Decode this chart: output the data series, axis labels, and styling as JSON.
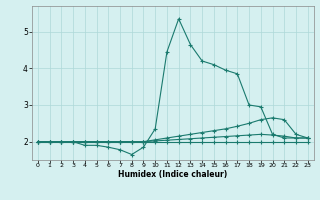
{
  "xlabel": "Humidex (Indice chaleur)",
  "bg_color": "#d5f0f0",
  "grid_color": "#aed8d8",
  "line_color": "#1a7a6e",
  "xlim": [
    -0.5,
    23.5
  ],
  "ylim": [
    1.5,
    5.7
  ],
  "yticks": [
    2,
    3,
    4,
    5
  ],
  "xticks": [
    0,
    1,
    2,
    3,
    4,
    5,
    6,
    7,
    8,
    9,
    10,
    11,
    12,
    13,
    14,
    15,
    16,
    17,
    18,
    19,
    20,
    21,
    22,
    23
  ],
  "series": [
    {
      "x": [
        0,
        1,
        2,
        3,
        4,
        5,
        6,
        7,
        8,
        9,
        10,
        11,
        12,
        13,
        14,
        15,
        16,
        17,
        18,
        19,
        20,
        21,
        22,
        23
      ],
      "y": [
        2.0,
        2.0,
        2.0,
        2.0,
        1.9,
        1.9,
        1.85,
        1.78,
        1.65,
        1.85,
        2.35,
        4.45,
        5.35,
        4.65,
        4.2,
        4.1,
        3.95,
        3.85,
        3.0,
        2.95,
        2.2,
        2.1,
        2.1,
        2.1
      ]
    },
    {
      "x": [
        0,
        1,
        2,
        3,
        4,
        5,
        6,
        7,
        8,
        9,
        10,
        11,
        12,
        13,
        14,
        15,
        16,
        17,
        18,
        19,
        20,
        21,
        22,
        23
      ],
      "y": [
        2.0,
        2.0,
        2.0,
        2.0,
        2.0,
        2.0,
        2.0,
        2.0,
        2.0,
        2.0,
        2.05,
        2.1,
        2.15,
        2.2,
        2.25,
        2.3,
        2.35,
        2.42,
        2.5,
        2.6,
        2.65,
        2.6,
        2.2,
        2.1
      ]
    },
    {
      "x": [
        0,
        1,
        2,
        3,
        4,
        5,
        6,
        7,
        8,
        9,
        10,
        11,
        12,
        13,
        14,
        15,
        16,
        17,
        18,
        19,
        20,
        21,
        22,
        23
      ],
      "y": [
        2.0,
        2.0,
        2.0,
        2.0,
        2.0,
        2.0,
        2.0,
        2.0,
        2.0,
        2.0,
        2.02,
        2.04,
        2.06,
        2.08,
        2.1,
        2.12,
        2.14,
        2.16,
        2.18,
        2.2,
        2.18,
        2.15,
        2.1,
        2.1
      ]
    },
    {
      "x": [
        0,
        1,
        2,
        3,
        4,
        5,
        6,
        7,
        8,
        9,
        10,
        11,
        12,
        13,
        14,
        15,
        16,
        17,
        18,
        19,
        20,
        21,
        22,
        23
      ],
      "y": [
        2.0,
        2.0,
        2.0,
        2.0,
        2.0,
        2.0,
        2.0,
        2.0,
        2.0,
        2.0,
        2.0,
        2.0,
        2.0,
        2.0,
        2.0,
        2.0,
        2.0,
        2.0,
        2.0,
        2.0,
        2.0,
        2.0,
        2.0,
        2.0
      ]
    }
  ]
}
